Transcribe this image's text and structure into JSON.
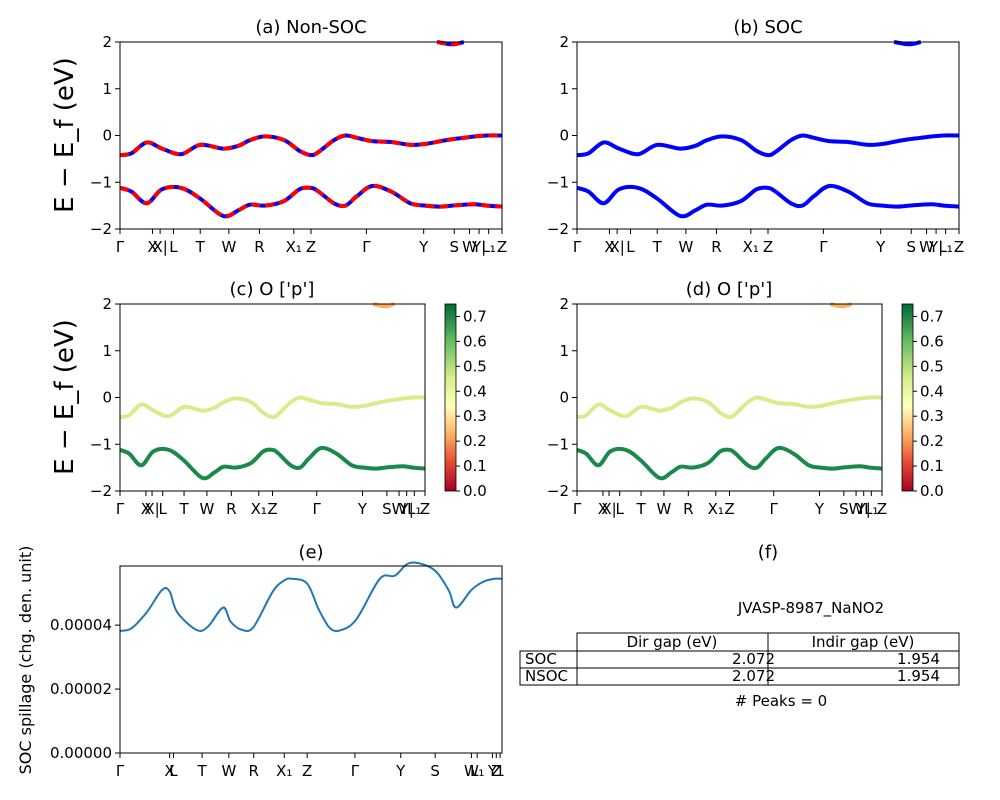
{
  "chart_data": [
    {
      "id": "a",
      "type": "line",
      "title": "(a) Non-SOC",
      "ylabel": "E − E_f (eV)",
      "ylim": [
        -2,
        2
      ],
      "yticks": [
        "−2",
        "−1",
        "0",
        "1",
        "2"
      ],
      "xticks": [
        "Γ",
        "X",
        "X|",
        "L",
        "T",
        "W",
        "R",
        "X₁",
        "Z",
        "Γ",
        "Y",
        "S",
        "W",
        "Y|",
        "L₁",
        "Z"
      ],
      "series": [
        {
          "band": "upper",
          "x": [
            0,
            0.03,
            0.07,
            0.11,
            0.16,
            0.21,
            0.27,
            0.31,
            0.34,
            0.38,
            0.43,
            0.47,
            0.5,
            0.52,
            0.56,
            0.59,
            0.62,
            0.66,
            0.71,
            0.76,
            0.8,
            0.84,
            0.87,
            0.9,
            0.93,
            0.96,
            1.0
          ],
          "values": [
            -0.42,
            -0.38,
            -0.15,
            -0.28,
            -0.4,
            -0.2,
            -0.28,
            -0.22,
            -0.1,
            -0.02,
            -0.1,
            -0.33,
            -0.42,
            -0.35,
            -0.1,
            0.0,
            -0.05,
            -0.12,
            -0.14,
            -0.2,
            -0.18,
            -0.12,
            -0.08,
            -0.05,
            -0.02,
            0.0,
            0.0
          ]
        },
        {
          "band": "lower",
          "x": [
            0,
            0.03,
            0.07,
            0.11,
            0.16,
            0.21,
            0.27,
            0.31,
            0.34,
            0.38,
            0.43,
            0.47,
            0.5,
            0.52,
            0.56,
            0.59,
            0.62,
            0.66,
            0.71,
            0.76,
            0.8,
            0.84,
            0.87,
            0.9,
            0.93,
            0.96,
            1.0
          ],
          "values": [
            -1.12,
            -1.2,
            -1.45,
            -1.15,
            -1.12,
            -1.35,
            -1.72,
            -1.6,
            -1.48,
            -1.5,
            -1.4,
            -1.15,
            -1.12,
            -1.2,
            -1.45,
            -1.5,
            -1.3,
            -1.08,
            -1.2,
            -1.45,
            -1.5,
            -1.52,
            -1.5,
            -1.48,
            -1.47,
            -1.5,
            -1.52
          ]
        },
        {
          "band": "conduction",
          "x": [
            0.83,
            0.87,
            0.9
          ],
          "values": [
            2.0,
            1.95,
            2.0
          ]
        }
      ]
    },
    {
      "id": "b",
      "type": "line",
      "title": "(b) SOC",
      "ylim": [
        -2,
        2
      ],
      "yticks": [
        "−2",
        "−1",
        "0",
        "1",
        "2"
      ],
      "xticks": [
        "Γ",
        "X",
        "X|",
        "L",
        "T",
        "W",
        "R",
        "X₁",
        "Z",
        "Γ",
        "Y",
        "S",
        "W",
        "Y|",
        "L₁",
        "Z"
      ]
    },
    {
      "id": "c",
      "type": "line",
      "title": "(c)  O ['p']",
      "ylabel": "E − E_f (eV)",
      "ylim": [
        -2,
        2
      ],
      "yticks": [
        "−2",
        "−1",
        "0",
        "1",
        "2"
      ],
      "xticks": [
        "Γ",
        "X",
        "X|",
        "L",
        "T",
        "W",
        "R",
        "X₁",
        "Z",
        "Γ",
        "Y",
        "S",
        "W",
        "Y|",
        "L₁",
        "Z"
      ],
      "colorbar": {
        "range": [
          0.0,
          0.75
        ],
        "ticks": [
          "0.0",
          "0.1",
          "0.2",
          "0.3",
          "0.4",
          "0.5",
          "0.6",
          "0.7"
        ]
      }
    },
    {
      "id": "d",
      "type": "line",
      "title": "(d) O ['p']",
      "ylim": [
        -2,
        2
      ],
      "yticks": [
        "−2",
        "−1",
        "0",
        "1",
        "2"
      ],
      "xticks": [
        "Γ",
        "X",
        "X|",
        "L",
        "T",
        "W",
        "R",
        "X₁",
        "Z",
        "Γ",
        "Y",
        "S",
        "W",
        "Y|",
        "L₁",
        "Z"
      ],
      "colorbar": {
        "range": [
          0.0,
          0.75
        ],
        "ticks": [
          "0.0",
          "0.1",
          "0.2",
          "0.3",
          "0.4",
          "0.5",
          "0.6",
          "0.7"
        ]
      }
    },
    {
      "id": "e",
      "type": "line",
      "title": "(e)",
      "ylabel": "SOC spillage (chg. den. unit)",
      "ylim": [
        0,
        6e-05
      ],
      "yticks": [
        "0.00000",
        "0.00002",
        "0.00004"
      ],
      "xticks": [
        "Γ",
        "X",
        "L",
        "T",
        "W",
        "R",
        "X₁",
        "Z",
        "Γ",
        "Y",
        "S",
        "W",
        "L₁",
        "Y",
        "Z",
        "1"
      ],
      "x": [
        0,
        0.03,
        0.07,
        0.11,
        0.13,
        0.15,
        0.2,
        0.23,
        0.27,
        0.29,
        0.32,
        0.35,
        0.4,
        0.43,
        0.45,
        0.49,
        0.52,
        0.55,
        0.58,
        0.62,
        0.68,
        0.72,
        0.76,
        0.82,
        0.86,
        0.88,
        0.92,
        0.95,
        0.98,
        1.0
      ],
      "values": [
        3.82e-05,
        3.9e-05,
        4.4e-05,
        5.1e-05,
        5.05e-05,
        4.4e-05,
        3.85e-05,
        3.95e-05,
        4.55e-05,
        4.1e-05,
        3.85e-05,
        3.95e-05,
        5.05e-05,
        5.4e-05,
        5.45e-05,
        5.3e-05,
        4.5e-05,
        3.9e-05,
        3.85e-05,
        4.2e-05,
        5.45e-05,
        5.55e-05,
        5.95e-05,
        5.75e-05,
        5.1e-05,
        4.55e-05,
        5.1e-05,
        5.35e-05,
        5.45e-05,
        5.45e-05
      ]
    }
  ],
  "panel_f": {
    "title": "(f)",
    "material": "JVASP-8987_NaNO2",
    "table": {
      "headers": [
        "Dir gap (eV)",
        "Indir gap (eV)"
      ],
      "rows": [
        {
          "label": "SOC",
          "dir": "2.072",
          "indir": "1.954"
        },
        {
          "label": "NSOC",
          "dir": "2.072",
          "indir": "1.954"
        }
      ]
    },
    "peaks": "# Peaks = 0"
  },
  "colors": {
    "blue": "#0000ff",
    "red": "#ff0000",
    "spillage": "#1f77b4",
    "high_proj": "#1a8a4a",
    "low_proj": "#d9ec8c",
    "mid_proj": "#fdae61"
  }
}
